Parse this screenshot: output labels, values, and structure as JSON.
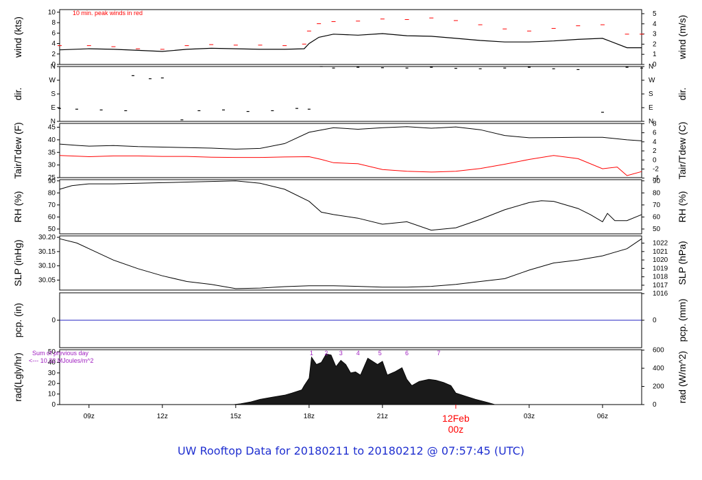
{
  "title": "UW Rooftop Data for 20180211  to  20180212 @ 07:57:45  (UTC)",
  "colors": {
    "axis": "#000000",
    "peak": "#ff0000",
    "dew": "#ff0000",
    "precip": "#2020c0",
    "annotation": "#a020c0",
    "title": "#1f2fd0",
    "date_label": "#ff0000"
  },
  "x_axis": {
    "unit": "hours UTC",
    "range": [
      7.8,
      31.6
    ],
    "ticks": [
      {
        "x": 9,
        "label": "09z"
      },
      {
        "x": 12,
        "label": "12z"
      },
      {
        "x": 15,
        "label": "15z"
      },
      {
        "x": 18,
        "label": "18z"
      },
      {
        "x": 21,
        "label": "21z"
      },
      {
        "x": 27,
        "label": "03z"
      },
      {
        "x": 30,
        "label": "06z"
      }
    ],
    "major_tick": {
      "x": 24,
      "date": "12Feb",
      "hour": "00z"
    }
  },
  "chart_data": [
    {
      "type": "line",
      "ylabel": "wind (kts)",
      "ylabel_right": "wind (m/s)",
      "ylim": [
        0,
        10.5
      ],
      "yticks": [
        0,
        2,
        4,
        6,
        8,
        10
      ],
      "right_ticks": [
        0,
        1,
        2,
        3,
        4,
        5
      ],
      "annotation": "10 min. peak winds in red",
      "series": [
        {
          "role": "mean",
          "x": [
            7.8,
            9,
            10,
            11,
            12,
            13,
            14,
            15,
            16,
            17,
            17.8,
            18,
            18.4,
            19,
            20,
            21,
            22,
            23,
            24,
            25,
            26,
            27,
            28,
            29,
            30,
            31,
            31.6
          ],
          "y": [
            2.8,
            3.0,
            2.9,
            2.7,
            2.5,
            2.9,
            3.1,
            3.0,
            2.9,
            2.9,
            3.0,
            4.0,
            5.2,
            5.8,
            5.6,
            5.9,
            5.5,
            5.4,
            5.0,
            4.6,
            4.3,
            4.3,
            4.5,
            4.8,
            5.0,
            3.2,
            3.2
          ]
        },
        {
          "role": "peak",
          "x": [
            7.8,
            9,
            10,
            11,
            12,
            13,
            14,
            15,
            16,
            17,
            17.8,
            18,
            18.4,
            19,
            20,
            21,
            22,
            23,
            24,
            25,
            26,
            27,
            28,
            29,
            30,
            31,
            31.6
          ],
          "y": [
            3.6,
            3.6,
            3.4,
            3.0,
            2.9,
            3.6,
            3.8,
            3.7,
            3.7,
            3.6,
            3.9,
            6.4,
            7.8,
            8.2,
            8.3,
            8.7,
            8.6,
            8.9,
            8.4,
            7.6,
            6.8,
            6.4,
            6.9,
            7.4,
            7.6,
            5.8,
            5.8
          ]
        }
      ]
    },
    {
      "type": "scatter",
      "ylabel": "dir.",
      "ylabel_right": "dir.",
      "ylim": [
        0,
        360
      ],
      "tick_labels": [
        "N",
        "E",
        "S",
        "W",
        "N"
      ],
      "x": [
        7.8,
        8.5,
        9.5,
        10.5,
        10.8,
        11.5,
        12,
        12.8,
        13.5,
        14.5,
        15.5,
        16.5,
        17.5,
        18,
        18.5,
        19,
        20,
        21,
        22,
        23,
        24,
        25,
        26,
        27,
        28,
        29,
        30,
        31,
        31.6
      ],
      "y": [
        85,
        80,
        75,
        70,
        300,
        280,
        285,
        10,
        70,
        75,
        65,
        70,
        85,
        80,
        360,
        350,
        355,
        352,
        350,
        355,
        348,
        345,
        350,
        355,
        345,
        340,
        60,
        355,
        350
      ]
    },
    {
      "type": "line",
      "ylabel": "Tair/Tdew (F)",
      "ylabel_right": "Tair/Tdew (C)",
      "ylim": [
        25,
        46.5
      ],
      "yticks": [
        25,
        30,
        35,
        40,
        45
      ],
      "right_ticks": [
        -4,
        -2,
        0,
        2,
        4,
        6,
        8
      ],
      "series": [
        {
          "role": "air",
          "x": [
            7.8,
            8.5,
            9,
            10,
            11,
            12,
            13,
            14,
            15,
            16,
            17,
            18,
            19,
            20,
            21,
            22,
            23,
            24,
            25,
            26,
            27,
            28,
            29,
            30,
            31,
            31.6
          ],
          "y": [
            38.3,
            37.8,
            37.5,
            37.7,
            37.3,
            37.1,
            36.9,
            36.7,
            36.3,
            36.6,
            38.5,
            43,
            44.8,
            44.2,
            44.8,
            45.2,
            44.6,
            45.1,
            44,
            41.7,
            40.8,
            40.9,
            41,
            41,
            40,
            39.6
          ]
        },
        {
          "role": "dew",
          "x": [
            7.8,
            9,
            10,
            11,
            12,
            13,
            14,
            15,
            16,
            17,
            18,
            18.5,
            19,
            20,
            21,
            22,
            23,
            24,
            25,
            26,
            27,
            28,
            29,
            30,
            30.6,
            31,
            31.6
          ],
          "y": [
            33.8,
            33.3,
            33.6,
            33.6,
            33.4,
            33.4,
            33.1,
            33.0,
            33.0,
            33.2,
            33.3,
            32.2,
            30.9,
            30.5,
            28.2,
            27.5,
            27.2,
            27.5,
            28.6,
            30.3,
            32.2,
            33.8,
            32.5,
            28.5,
            29.2,
            25.8,
            27.4
          ]
        }
      ]
    },
    {
      "type": "line",
      "ylabel": "RH (%)",
      "ylabel_right": "RH (%)",
      "ylim": [
        46,
        91
      ],
      "yticks": [
        50,
        60,
        70,
        80,
        90
      ],
      "right_ticks": [
        50,
        60,
        70,
        80,
        90
      ],
      "x": [
        7.8,
        8.3,
        9,
        10,
        11,
        12,
        13,
        14,
        15,
        16,
        17,
        18,
        18.5,
        19,
        20,
        21,
        22,
        23,
        24,
        25,
        26,
        27,
        27.5,
        28,
        29,
        29.5,
        30,
        30.2,
        30.5,
        31,
        31.6
      ],
      "y": [
        83,
        86,
        87.5,
        87.5,
        88,
        88.5,
        89,
        89.5,
        90,
        88,
        83,
        73,
        64,
        62,
        59,
        54,
        56,
        49,
        51,
        58,
        66,
        72,
        73.5,
        73,
        67,
        62,
        56,
        63,
        57,
        57,
        62
      ]
    },
    {
      "type": "line",
      "ylabel": "SLP (inHg)",
      "ylabel_right": "SLP (hPa)",
      "ylim": [
        30.015,
        30.205
      ],
      "yticks": [
        30.05,
        30.1,
        30.15,
        30.2
      ],
      "ytick_labels": [
        "30.05",
        "30.10",
        "30.15",
        "30.20"
      ],
      "right_ticks": [
        1016,
        1017,
        1018,
        1019,
        1020,
        1021,
        1022
      ],
      "x": [
        7.8,
        8.5,
        9,
        10,
        11,
        12,
        13,
        14,
        15,
        16,
        17,
        18,
        19,
        20,
        21,
        22,
        23,
        24,
        25,
        26,
        27,
        28,
        29,
        30,
        31,
        31.6
      ],
      "y": [
        30.195,
        30.18,
        30.16,
        30.12,
        30.09,
        30.065,
        30.045,
        30.035,
        30.02,
        30.022,
        30.027,
        30.03,
        30.03,
        30.028,
        30.025,
        30.025,
        30.028,
        30.035,
        30.045,
        30.055,
        30.085,
        30.11,
        30.12,
        30.135,
        30.16,
        30.195
      ]
    },
    {
      "type": "line",
      "ylabel": "pcp. (in)",
      "ylabel_right": "pcp. (mm)",
      "ylim": [
        -0.05,
        0.05
      ],
      "yticks": [
        0
      ],
      "right_ticks": [
        0
      ],
      "x": [
        7.8,
        31.6
      ],
      "y": [
        0,
        0
      ]
    },
    {
      "type": "area",
      "ylabel": "rad(Lgly/hr)",
      "ylabel_right": "rad (W/m^2)",
      "ylim": [
        0,
        52
      ],
      "yticks": [
        0,
        10,
        20,
        30,
        40,
        50
      ],
      "right_ticks": [
        0,
        200,
        400,
        600
      ],
      "annotation": [
        "Sum of previous day",
        "<--- 10.32 MJoules/m^2"
      ],
      "markers": [
        {
          "x": 18.1,
          "label": "1"
        },
        {
          "x": 18.7,
          "label": "2"
        },
        {
          "x": 19.3,
          "label": "3"
        },
        {
          "x": 20.0,
          "label": "4"
        },
        {
          "x": 20.9,
          "label": "5"
        },
        {
          "x": 22.0,
          "label": "6"
        },
        {
          "x": 23.3,
          "label": "7"
        }
      ],
      "x": [
        7.8,
        14.9,
        15.2,
        15.6,
        16,
        16.5,
        17,
        17.3,
        17.7,
        17.8,
        18,
        18.1,
        18.3,
        18.5,
        18.7,
        18.9,
        19.1,
        19.3,
        19.5,
        19.7,
        19.9,
        20.1,
        20.4,
        20.8,
        21,
        21.2,
        21.5,
        21.8,
        22.0,
        22.2,
        22.5,
        22.9,
        23.2,
        23.5,
        23.8,
        24,
        24.4,
        24.8,
        25.3,
        25.6,
        31.6
      ],
      "y": [
        0,
        0,
        0.8,
        2.5,
        5,
        7,
        9,
        11,
        14,
        18,
        25,
        45,
        38,
        40,
        48,
        47,
        36,
        42,
        38,
        30,
        31,
        28,
        44,
        38,
        41,
        28,
        31,
        35,
        24,
        18,
        22,
        24,
        23,
        21,
        18,
        11,
        8,
        5,
        2,
        0,
        0
      ]
    }
  ]
}
